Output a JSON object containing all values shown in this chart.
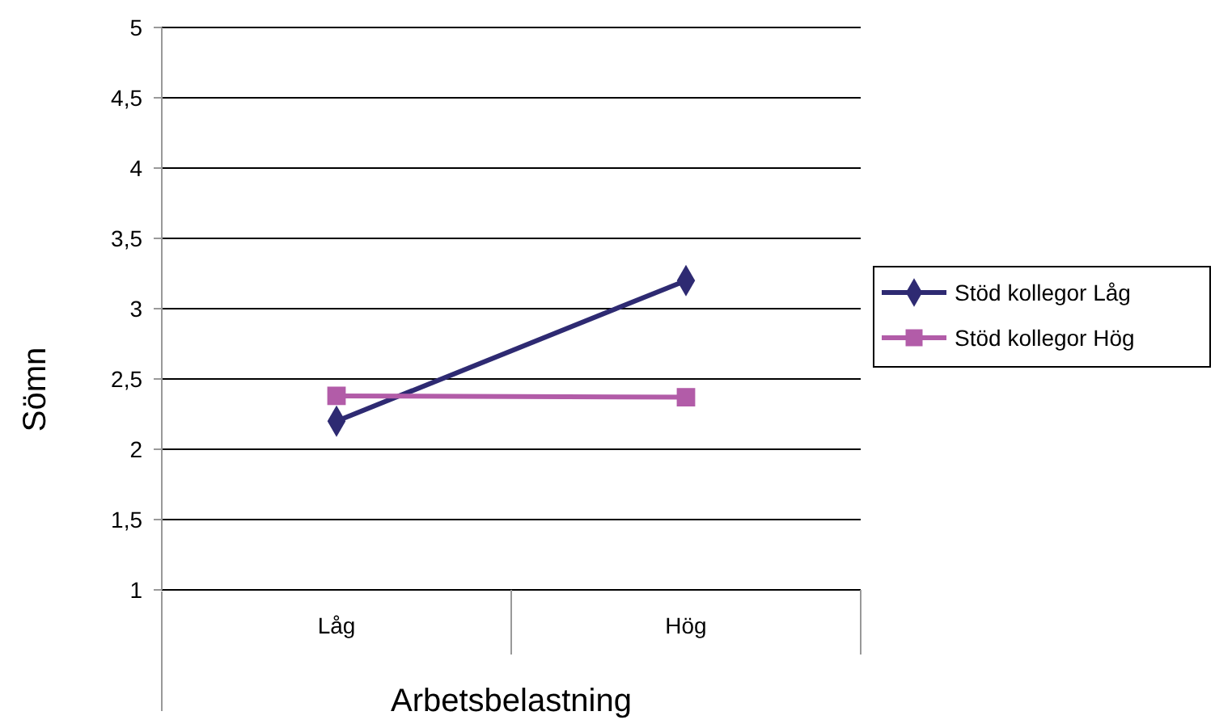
{
  "chart_data": {
    "type": "line",
    "xlabel": "Arbetsbelastning",
    "ylabel": "Sömn",
    "categories": [
      "Låg",
      "Hög"
    ],
    "series": [
      {
        "name": "Stöd kollegor Låg",
        "color": "#2e2a72",
        "values": [
          2.2,
          3.2
        ],
        "marker": "diamond"
      },
      {
        "name": "Stöd kollegor Hög",
        "color": "#b25ca8",
        "values": [
          2.38,
          2.37
        ],
        "marker": "square"
      }
    ],
    "ylim": [
      1,
      5
    ],
    "yticks": [
      1,
      {
        "value": 1.5,
        "label": "1,5"
      },
      2,
      {
        "value": 2.5,
        "label": "2,5"
      },
      3,
      {
        "value": 3.5,
        "label": "3,5"
      },
      4,
      {
        "value": 4.5,
        "label": "4,5"
      },
      5
    ],
    "grid": "y",
    "legend": "right",
    "line_style": "solid"
  }
}
